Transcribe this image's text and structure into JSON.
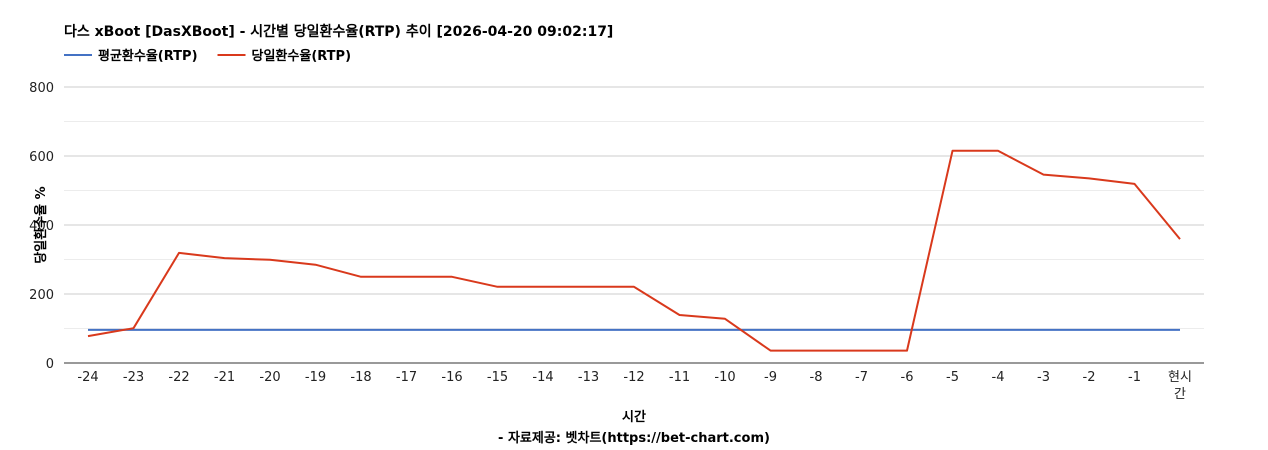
{
  "chart_data": {
    "type": "line",
    "title": "다스 xBoot [DasXBoot] - 시간별 당일환수율(RTP) 추이 [2026-04-20 09:02:17]",
    "xlabel": "시간",
    "source": "- 자료제공: 벳차트(https://bet-chart.com)",
    "ylabel": "당일환수율 %",
    "categories": [
      "-24",
      "-23",
      "-22",
      "-21",
      "-20",
      "-19",
      "-18",
      "-17",
      "-16",
      "-15",
      "-14",
      "-13",
      "-12",
      "-11",
      "-10",
      "-9",
      "-8",
      "-7",
      "-6",
      "-5",
      "-4",
      "-3",
      "-2",
      "-1",
      "현시간"
    ],
    "category_display": [
      "-24",
      "-23",
      "-22",
      "-21",
      "-20",
      "-19",
      "-18",
      "-17",
      "-16",
      "-15",
      "-14",
      "-13",
      "-12",
      "-11",
      "-10",
      "-9",
      "-8",
      "-7",
      "-6",
      "-5",
      "-4",
      "-3",
      "-2",
      "-1",
      [
        "현시",
        "간"
      ]
    ],
    "ylim": [
      0,
      800
    ],
    "yticks": [
      0,
      200,
      400,
      600,
      800
    ],
    "grid": true,
    "legend_position": "top-left",
    "series": [
      {
        "name": "평균환수율(RTP)",
        "color": "#4472c4",
        "values": [
          96,
          96,
          96,
          96,
          96,
          96,
          96,
          96,
          96,
          96,
          96,
          96,
          96,
          96,
          96,
          96,
          96,
          96,
          96,
          96,
          96,
          96,
          96,
          96,
          96
        ]
      },
      {
        "name": "당일환수율(RTP)",
        "color": "#d9391c",
        "values": [
          78,
          101,
          319,
          304,
          299,
          285,
          250,
          250,
          250,
          221,
          221,
          221,
          221,
          139,
          128,
          36,
          36,
          36,
          36,
          615,
          615,
          546,
          535,
          519,
          359
        ]
      }
    ]
  }
}
